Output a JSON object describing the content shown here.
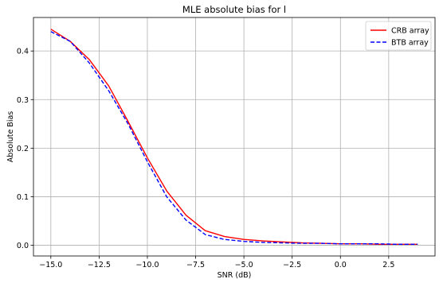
{
  "chart_data": {
    "type": "line",
    "title": "MLE absolute bias for l",
    "xlabel": "SNR (dB)",
    "ylabel": "Absolute Bias",
    "xlim": [
      -15.9,
      4.9
    ],
    "ylim": [
      -0.022,
      0.469
    ],
    "xticks": [
      -15.0,
      -12.5,
      -10.0,
      -7.5,
      -5.0,
      -2.5,
      0.0,
      2.5
    ],
    "xtick_labels": [
      "−15.0",
      "−12.5",
      "−10.0",
      "−7.5",
      "−5.0",
      "−2.5",
      "0.0",
      "2.5"
    ],
    "yticks": [
      0.0,
      0.1,
      0.2,
      0.3,
      0.4
    ],
    "ytick_labels": [
      "0.0",
      "0.1",
      "0.2",
      "0.3",
      "0.4"
    ],
    "grid": true,
    "legend_position": "top-right",
    "series": [
      {
        "name": "CRB array",
        "color": "#ff0000",
        "linestyle": "solid",
        "x": [
          -15,
          -14,
          -13,
          -12,
          -11,
          -10,
          -9,
          -8,
          -7,
          -6,
          -5,
          -4,
          -3,
          -2,
          -1,
          0,
          1,
          2,
          3,
          4
        ],
        "y": [
          0.445,
          0.42,
          0.382,
          0.328,
          0.255,
          0.18,
          0.112,
          0.062,
          0.03,
          0.018,
          0.012,
          0.009,
          0.007,
          0.005,
          0.004,
          0.003,
          0.003,
          0.002,
          0.002,
          0.002
        ]
      },
      {
        "name": "BTB array",
        "color": "#0000ff",
        "linestyle": "dashed",
        "x": [
          -15,
          -14,
          -13,
          -12,
          -11,
          -10,
          -9,
          -8,
          -7,
          -6,
          -5,
          -4,
          -3,
          -2,
          -1,
          0,
          1,
          2,
          3,
          4
        ],
        "y": [
          0.44,
          0.42,
          0.375,
          0.318,
          0.25,
          0.172,
          0.1,
          0.052,
          0.022,
          0.012,
          0.008,
          0.006,
          0.005,
          0.004,
          0.004,
          0.003,
          0.003,
          0.003,
          0.002,
          0.002
        ]
      }
    ]
  }
}
